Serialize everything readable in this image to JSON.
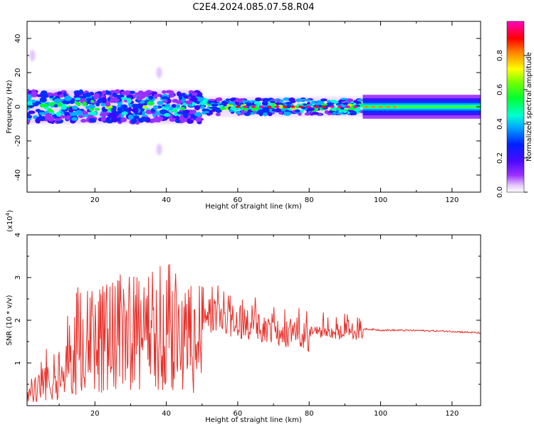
{
  "figure": {
    "title": "C2E4.2024.085.07.58.R04"
  },
  "chart_data": [
    {
      "type": "heatmap",
      "xlabel": "Height of straight line (km)",
      "ylabel": "Frequency (Hz)",
      "xlim": [
        1,
        128
      ],
      "ylim": [
        -50,
        50
      ],
      "xticks": [
        20,
        40,
        60,
        80,
        100,
        120
      ],
      "yticks": [
        -40,
        -20,
        0,
        20,
        40
      ],
      "colorbar": {
        "label": "Normalized spectral amplitude",
        "range": [
          0.0,
          1.0
        ],
        "ticks": [
          0.0,
          0.2,
          0.4,
          0.6,
          0.8
        ],
        "colormap": "rainbow (purple-blue-cyan-green-yellow-orange-red-magenta)"
      },
      "description_bands": [
        {
          "x": [
            1,
            50
          ],
          "freq_halfwidth_hz": 10,
          "amplitude": "noisy 0.2-0.8"
        },
        {
          "x": [
            50,
            95
          ],
          "freq_halfwidth_hz": 5,
          "amplitude": "ridge near 0 Hz, peaks ~0.9-1.0"
        },
        {
          "x": [
            95,
            128
          ],
          "freq_halfwidth_hz": 4,
          "amplitude": "smooth ridge ~0.3-0.5"
        }
      ],
      "features": [
        {
          "x": 2.5,
          "freq": 30
        },
        {
          "x": 38,
          "freq": 20
        },
        {
          "x": 38,
          "freq": -25
        }
      ]
    },
    {
      "type": "line",
      "xlabel": "Height of straight line (km)",
      "ylabel": "SNR (10 * v/v)",
      "yscale_label": "(x10^4)",
      "xlim": [
        1,
        128
      ],
      "ylim": [
        0,
        4
      ],
      "xticks": [
        20,
        40,
        60,
        80,
        100,
        120
      ],
      "yticks": [
        1,
        2,
        3,
        4
      ],
      "color": "#e8302a",
      "series": [
        {
          "x": [
            1,
            5,
            10,
            15,
            20,
            25,
            30,
            35,
            40,
            45,
            50,
            55,
            60,
            65,
            70,
            75,
            80,
            85,
            90,
            95,
            100,
            110,
            120,
            128
          ],
          "y": [
            0.3,
            1.0,
            1.1,
            2.5,
            2.4,
            2.6,
            2.9,
            3.0,
            3.0,
            2.8,
            2.6,
            2.5,
            2.35,
            2.2,
            2.1,
            2.0,
            1.9,
            1.85,
            1.82,
            1.8,
            1.77,
            1.76,
            1.74,
            1.7
          ]
        }
      ]
    }
  ]
}
